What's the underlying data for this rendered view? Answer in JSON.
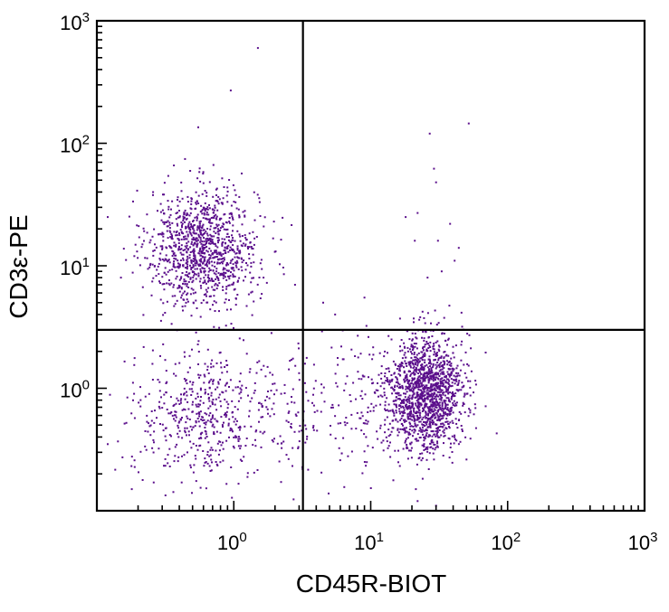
{
  "chart_data": {
    "type": "scatter",
    "title": "",
    "xlabel": "CD45R-BIOT",
    "ylabel": "CD3ε-PE",
    "x_scale": "log",
    "y_scale": "log",
    "xlim": [
      0.1,
      1000
    ],
    "ylim": [
      0.1,
      1000
    ],
    "x_ticks": [
      {
        "value": 1,
        "base": "10",
        "exp": "0"
      },
      {
        "value": 10,
        "base": "10",
        "exp": "1"
      },
      {
        "value": 100,
        "base": "10",
        "exp": "2"
      },
      {
        "value": 1000,
        "base": "10",
        "exp": "3"
      }
    ],
    "y_ticks": [
      {
        "value": 1,
        "base": "10",
        "exp": "0"
      },
      {
        "value": 10,
        "base": "10",
        "exp": "1"
      },
      {
        "value": 100,
        "base": "10",
        "exp": "2"
      },
      {
        "value": 1000,
        "base": "10",
        "exp": "3"
      }
    ],
    "quadrant_gates": {
      "x": 3.2,
      "y": 3.0
    },
    "grid": false,
    "legend": "none",
    "point_color": "#5b0f8c",
    "populations": [
      {
        "x_center": 0.6,
        "y_center": 14,
        "x_spread_log10": 0.2,
        "y_spread_log10": 0.24,
        "count": 1100
      },
      {
        "x_center": 0.6,
        "y_center": 0.6,
        "x_spread_log10": 0.26,
        "y_spread_log10": 0.26,
        "count": 500
      },
      {
        "x_center": 25,
        "y_center": 0.9,
        "x_spread_log10": 0.14,
        "y_spread_log10": 0.24,
        "count": 1500
      },
      {
        "x_center": 5,
        "y_center": 0.7,
        "x_spread_log10": 0.32,
        "y_spread_log10": 0.27,
        "count": 220
      }
    ],
    "points": [
      {
        "x": 1.5,
        "y": 600
      },
      {
        "x": 0.95,
        "y": 270
      },
      {
        "x": 0.55,
        "y": 135
      },
      {
        "x": 27,
        "y": 120
      },
      {
        "x": 52,
        "y": 145
      },
      {
        "x": 29,
        "y": 62
      },
      {
        "x": 30,
        "y": 48
      },
      {
        "x": 22,
        "y": 27
      },
      {
        "x": 18,
        "y": 25
      },
      {
        "x": 38,
        "y": 22
      },
      {
        "x": 21,
        "y": 16
      },
      {
        "x": 31,
        "y": 16
      },
      {
        "x": 44,
        "y": 14
      },
      {
        "x": 33,
        "y": 9
      },
      {
        "x": 41,
        "y": 11
      },
      {
        "x": 26,
        "y": 8
      },
      {
        "x": 9,
        "y": 5.5
      },
      {
        "x": 4.5,
        "y": 5
      },
      {
        "x": 5.5,
        "y": 4
      },
      {
        "x": 23,
        "y": 3.8
      },
      {
        "x": 25,
        "y": 3.4
      },
      {
        "x": 2.8,
        "y": 7
      },
      {
        "x": 0.12,
        "y": 25
      },
      {
        "x": 0.15,
        "y": 8
      },
      {
        "x": 0.18,
        "y": 0.15
      },
      {
        "x": 0.12,
        "y": 0.35
      },
      {
        "x": 22,
        "y": 0.12
      },
      {
        "x": 30,
        "y": 0.11
      }
    ]
  }
}
